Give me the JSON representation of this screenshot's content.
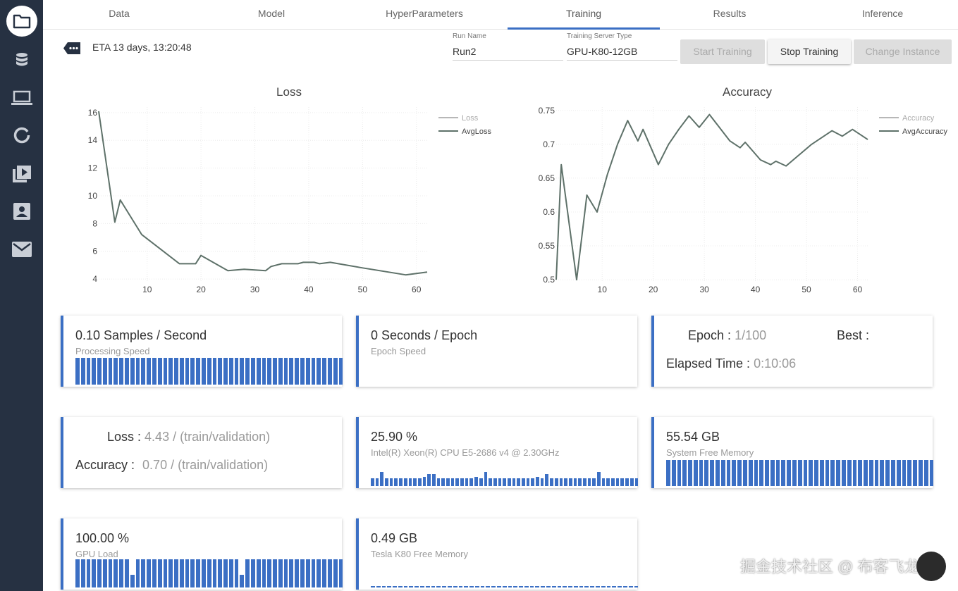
{
  "tabs": [
    {
      "label": "Data",
      "active": false
    },
    {
      "label": "Model",
      "active": false
    },
    {
      "label": "HyperParameters",
      "active": false
    },
    {
      "label": "Training",
      "active": true
    },
    {
      "label": "Results",
      "active": false
    },
    {
      "label": "Inference",
      "active": false
    }
  ],
  "sidebar": {
    "items": [
      {
        "icon": "folder-icon",
        "active": true
      },
      {
        "icon": "database-icon",
        "active": false
      },
      {
        "icon": "laptop-icon",
        "active": false
      },
      {
        "icon": "circle-progress-icon",
        "active": false
      },
      {
        "icon": "play-library-icon",
        "active": false
      },
      {
        "icon": "contact-card-icon",
        "active": false
      },
      {
        "icon": "mail-icon",
        "active": false
      }
    ]
  },
  "header": {
    "eta": "ETA 13 days, 13:20:48",
    "run_name_label": "Run Name",
    "run_name": "Run2",
    "server_type_label": "Training Server Type",
    "server_type": "GPU-K80-12GB",
    "start_label": "Start Training",
    "stop_label": "Stop Training",
    "change_label": "Change Instance"
  },
  "colors": {
    "accent": "#3b6fc4",
    "sidebar": "#263142",
    "series": "#5e7169",
    "legend_light": "#b7b7b7"
  },
  "chart_data": [
    {
      "type": "line",
      "title": "Loss",
      "xlim": [
        1,
        62
      ],
      "ylim": [
        3.8,
        16.4
      ],
      "xticks": [
        10,
        20,
        30,
        40,
        50,
        60
      ],
      "yticks": [
        4,
        6,
        8,
        10,
        12,
        14,
        16
      ],
      "legend_position": "top-right",
      "series": [
        {
          "name": "Loss",
          "values": []
        },
        {
          "name": "AvgLoss",
          "x": [
            1,
            4,
            5,
            9,
            16,
            19,
            20,
            25,
            28,
            32,
            33,
            35,
            38,
            39,
            41,
            42,
            44,
            50,
            58,
            62
          ],
          "values": [
            16.1,
            8.1,
            9.7,
            7.2,
            5.1,
            5.1,
            5.7,
            4.6,
            4.7,
            4.6,
            4.9,
            5.1,
            5.1,
            5.2,
            5.2,
            5.1,
            5.2,
            4.8,
            4.3,
            4.5
          ]
        }
      ]
    },
    {
      "type": "line",
      "title": "Accuracy",
      "xlim": [
        1,
        62
      ],
      "ylim": [
        0.497,
        0.755
      ],
      "xticks": [
        10,
        20,
        30,
        40,
        50,
        60
      ],
      "yticks": [
        0.5,
        0.55,
        0.6,
        0.65,
        0.7,
        0.75
      ],
      "legend_position": "top-right",
      "series": [
        {
          "name": "Accuracy",
          "values": []
        },
        {
          "name": "AvgAccuracy",
          "x": [
            1,
            2,
            5,
            7,
            9,
            11,
            13,
            15,
            17,
            18,
            21,
            23,
            25,
            27,
            29,
            31,
            35,
            37,
            38,
            41,
            43,
            44,
            46,
            51,
            55,
            57,
            59,
            62
          ],
          "values": [
            0.5,
            0.67,
            0.5,
            0.625,
            0.6,
            0.655,
            0.7,
            0.735,
            0.705,
            0.722,
            0.67,
            0.7,
            0.722,
            0.742,
            0.725,
            0.744,
            0.705,
            0.695,
            0.703,
            0.677,
            0.67,
            0.675,
            0.668,
            0.7,
            0.72,
            0.712,
            0.722,
            0.707
          ]
        }
      ]
    }
  ],
  "cards": {
    "processing": {
      "value": "0.10 Samples / Second",
      "label": "Processing Speed",
      "bars": [
        1,
        1,
        1,
        1,
        1,
        1,
        1,
        1,
        1,
        1,
        1,
        1,
        1,
        1,
        1,
        1,
        1,
        1,
        1,
        1,
        1,
        1,
        1,
        1,
        1,
        1,
        1,
        1,
        1,
        1,
        1,
        1,
        1,
        1,
        1,
        1,
        1,
        1,
        1,
        1,
        1,
        1,
        1,
        1,
        1,
        1,
        1,
        1,
        1
      ]
    },
    "epoch_speed": {
      "value": "0 Seconds / Epoch",
      "label": "Epoch Speed"
    },
    "epoch": {
      "epoch_label": "Epoch :",
      "epoch_value": "1/100",
      "best_label": "Best :",
      "elapsed_label": "Elapsed Time :",
      "elapsed_value": "0:10:06"
    },
    "loss_acc": {
      "loss_label": "Loss :",
      "loss_value": "4.43 / (train/validation)",
      "acc_label": "Accuracy :",
      "acc_value": "0.70 / (train/validation)"
    },
    "cpu": {
      "value": "25.90 %",
      "label": "Intel(R) Xeon(R) CPU E5-2686 v4 @ 2.30GHz",
      "bars": [
        0.45,
        0.45,
        0.85,
        0.45,
        0.45,
        0.45,
        0.45,
        0.45,
        0.45,
        0.45,
        0.45,
        0.55,
        0.7,
        0.7,
        0.45,
        0.45,
        0.45,
        0.45,
        0.45,
        0.45,
        0.45,
        0.45,
        0.55,
        0.45,
        0.85,
        0.45,
        0.45,
        0.45,
        0.45,
        0.45,
        0.45,
        0.45,
        0.45,
        0.45,
        0.45,
        0.55,
        0.45,
        0.7,
        0.45,
        0.45,
        0.45,
        0.45,
        0.45,
        0.45,
        0.45,
        0.45,
        0.45,
        0.45,
        0.85,
        0.45,
        0.45,
        0.45,
        0.45,
        0.45,
        0.45,
        0.45,
        0.45
      ]
    },
    "sys_mem": {
      "value": "55.54 GB",
      "label": "System Free Memory",
      "bars": [
        1,
        1,
        1,
        1,
        1,
        1,
        1,
        1,
        1,
        1,
        1,
        1,
        1,
        1,
        1,
        1,
        1,
        1,
        1,
        1,
        1,
        1,
        1,
        1,
        1,
        1,
        1,
        1,
        1,
        1,
        1,
        1,
        1,
        1,
        1,
        1,
        1,
        1,
        1,
        1,
        1,
        1,
        1,
        1,
        1,
        1,
        1,
        1,
        1
      ]
    },
    "gpu_load": {
      "value": "100.00 %",
      "label": "GPU Load",
      "bars": [
        1,
        1,
        1,
        1,
        1,
        1,
        1,
        1,
        1,
        1,
        0.45,
        1,
        1,
        1,
        1,
        1,
        1,
        1,
        1,
        1,
        1,
        1,
        1,
        1,
        1,
        1,
        1,
        1,
        1,
        1,
        0.45,
        1,
        1,
        1,
        1,
        1,
        1,
        1,
        1,
        1,
        1,
        1,
        1,
        1,
        1,
        1,
        1,
        1,
        1
      ]
    },
    "gpu_mem": {
      "value": "0.49 GB",
      "label": "Tesla K80 Free Memory",
      "bars": [
        0.05,
        0.05,
        0.05,
        0.05,
        0.05,
        0.05,
        0.05,
        0.05,
        0.05,
        0.05,
        0.05,
        0.05,
        0.05,
        0.05,
        0.05,
        0.05,
        0.05,
        0.05,
        0.05,
        0.05,
        0.05,
        0.05,
        0.05,
        0.05,
        0.05,
        0.05,
        0.05,
        0.05,
        0.05,
        0.05,
        0.05,
        0.05,
        0.05,
        0.05,
        0.05,
        0.05,
        0.05,
        0.05,
        0.05,
        0.05,
        0.05,
        0.05,
        0.05,
        0.05,
        0.05,
        0.05,
        0.05,
        0.05,
        0.05
      ]
    }
  },
  "watermark": "掘金技术社区 @ 布客飞龙"
}
